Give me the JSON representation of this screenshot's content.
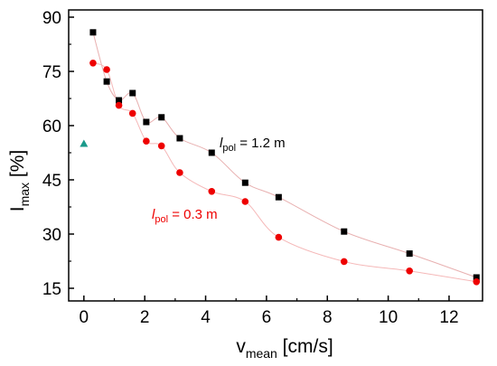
{
  "chart_data": {
    "type": "scatter",
    "x_axis": {
      "title_main": "v",
      "title_sub": "mean",
      "title_unit": " [cm/s]",
      "range": [
        -0.5,
        13.1
      ],
      "ticks": [
        0,
        2,
        4,
        6,
        8,
        10,
        12
      ]
    },
    "y_axis": {
      "title_main": "I",
      "title_sub": "max",
      "title_unit": " [%]",
      "range": [
        11.5,
        92
      ],
      "ticks": [
        15,
        30,
        45,
        60,
        75,
        90
      ]
    },
    "series": [
      {
        "color": "#000000",
        "marker": "square",
        "fit_line_color": "#e8b0b0",
        "label_italic": "l",
        "label_sub": "pol",
        "label_rest": " = 1.2 m",
        "points": [
          [
            0.3,
            85.8
          ],
          [
            0.75,
            72.2
          ],
          [
            1.15,
            67.0
          ],
          [
            1.6,
            69.0
          ],
          [
            2.05,
            61.0
          ],
          [
            2.55,
            62.3
          ],
          [
            3.15,
            56.5
          ],
          [
            4.2,
            52.5
          ],
          [
            5.3,
            44.2
          ],
          [
            6.4,
            40.2
          ],
          [
            8.55,
            30.7
          ],
          [
            10.7,
            24.6
          ],
          [
            12.9,
            18.0
          ]
        ]
      },
      {
        "color": "#ee0000",
        "marker": "circle",
        "fit_line_color": "#f5b8b8",
        "label_italic": "l",
        "label_sub": "pol",
        "label_rest": " = 0.3 m",
        "points": [
          [
            0.3,
            77.3
          ],
          [
            0.75,
            75.5
          ],
          [
            1.15,
            65.6
          ],
          [
            1.6,
            63.4
          ],
          [
            2.05,
            55.7
          ],
          [
            2.55,
            54.4
          ],
          [
            3.15,
            47.0
          ],
          [
            4.2,
            41.8
          ],
          [
            5.3,
            39.0
          ],
          [
            6.4,
            29.1
          ],
          [
            8.55,
            22.4
          ],
          [
            10.7,
            19.8
          ],
          [
            12.9,
            16.8
          ]
        ]
      },
      {
        "color": "#1a9a8a",
        "marker": "triangle",
        "points": [
          [
            0.0,
            55.0
          ]
        ]
      }
    ]
  }
}
